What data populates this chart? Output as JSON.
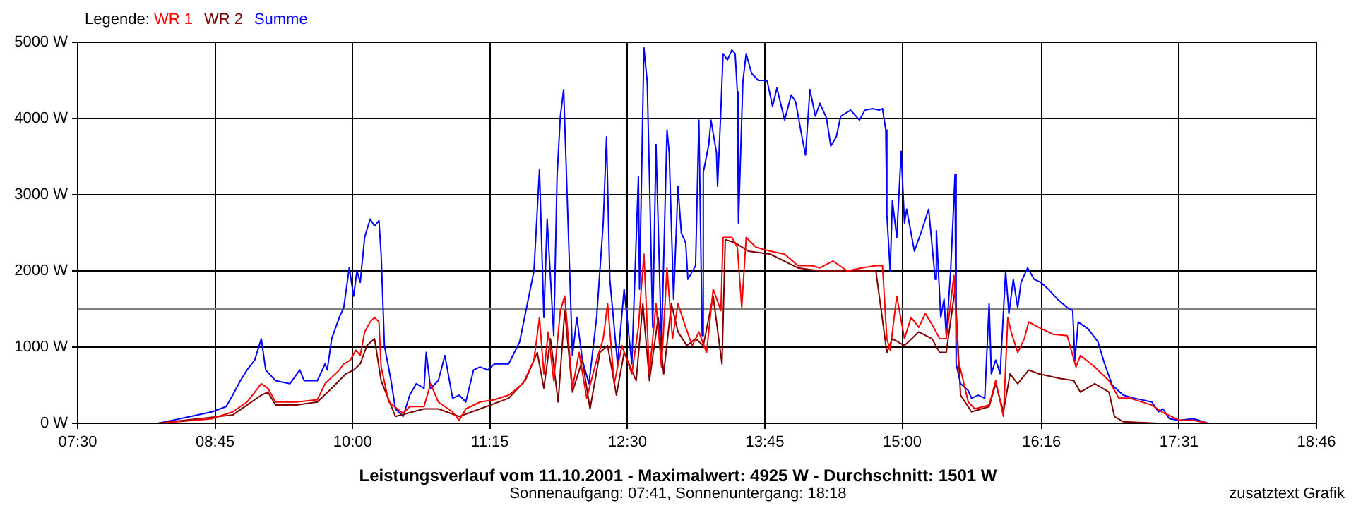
{
  "chart_data": {
    "type": "line",
    "title": "Leistungsverlauf vom 11.10.2001 - Maximalwert: 4925 W - Durchschnitt: 1501 W",
    "subtitle": "Sonnenaufgang: 07:41, Sonnenuntergang: 18:18",
    "legend_title": "Legende:",
    "legend": "top left",
    "grid": true,
    "marker": "none",
    "line_style": "solid",
    "annotations": [
      "zusatztext Grafik"
    ],
    "xlim": [
      7.5,
      18.767
    ],
    "xticks": [
      {
        "value": 7.5,
        "label": "07:30"
      },
      {
        "value": 8.75,
        "label": "08:45"
      },
      {
        "value": 10,
        "label": "10:00"
      },
      {
        "value": 11.25,
        "label": "11:15"
      },
      {
        "value": 12.5,
        "label": "12:30"
      },
      {
        "value": 13.75,
        "label": "13:45"
      },
      {
        "value": 15,
        "label": "15:00"
      },
      {
        "value": 16.267,
        "label": "16:16"
      },
      {
        "value": 17.517,
        "label": "17:31"
      },
      {
        "value": 18.767,
        "label": "18:46"
      }
    ],
    "ylim": [
      0,
      5000
    ],
    "yticks": [
      {
        "value": 0,
        "label": "0 W"
      },
      {
        "value": 1000,
        "label": "1000 W"
      },
      {
        "value": 2000,
        "label": "2000 W"
      },
      {
        "value": 3000,
        "label": "3000 W"
      },
      {
        "value": 4000,
        "label": "4000 W"
      },
      {
        "value": 5000,
        "label": "5000 W"
      }
    ],
    "ref_lines": [
      {
        "axis": "y",
        "value": 1501,
        "color": "#808080"
      }
    ],
    "series": [
      {
        "name": "WR 1",
        "color": "#ff0000",
        "x": [
          8.23,
          8.72,
          8.91,
          9.04,
          9.17,
          9.23,
          9.3,
          9.49,
          9.68,
          9.75,
          9.88,
          9.92,
          9.98,
          10.03,
          10.07,
          10.11,
          10.16,
          10.2,
          10.24,
          10.26,
          10.33,
          10.46,
          10.52,
          10.65,
          10.71,
          10.78,
          10.91,
          10.97,
          11.03,
          11.16,
          11.29,
          11.42,
          11.55,
          11.65,
          11.7,
          11.74,
          11.78,
          11.83,
          11.89,
          11.93,
          12.0,
          12.06,
          12.13,
          12.22,
          12.28,
          12.32,
          12.38,
          12.45,
          12.54,
          12.6,
          12.65,
          12.7,
          12.76,
          12.81,
          12.86,
          12.91,
          12.96,
          13.03,
          13.09,
          13.15,
          13.22,
          13.28,
          13.35,
          13.37,
          13.45,
          13.5,
          13.54,
          13.58,
          13.67,
          13.8,
          13.93,
          14.05,
          14.18,
          14.25,
          14.37,
          14.5,
          14.63,
          14.76,
          14.82,
          14.86,
          14.89,
          14.95,
          15.02,
          15.08,
          15.15,
          15.21,
          15.27,
          15.34,
          15.4,
          15.47,
          15.51,
          15.6,
          15.66,
          15.79,
          15.85,
          15.92,
          15.96,
          15.99,
          16.05,
          16.11,
          16.15,
          16.24,
          16.37,
          16.5,
          16.58,
          16.62,
          16.75,
          16.88,
          16.97,
          17.07,
          17.27,
          17.36,
          17.52,
          17.65,
          17.78
        ],
        "values": [
          0,
          60,
          150,
          280,
          520,
          460,
          280,
          280,
          310,
          520,
          700,
          780,
          830,
          960,
          890,
          1200,
          1330,
          1390,
          1330,
          740,
          280,
          130,
          220,
          220,
          520,
          280,
          150,
          40,
          190,
          280,
          310,
          370,
          520,
          830,
          1390,
          650,
          1200,
          560,
          1480,
          1670,
          460,
          930,
          330,
          830,
          1110,
          1570,
          520,
          1020,
          650,
          1260,
          2220,
          650,
          1570,
          740,
          2040,
          1110,
          1570,
          1260,
          1020,
          1200,
          930,
          1760,
          1480,
          2440,
          2440,
          2310,
          1520,
          2440,
          2310,
          2260,
          2220,
          2070,
          2070,
          2040,
          2130,
          2000,
          2040,
          2070,
          2070,
          1110,
          960,
          1670,
          1110,
          1390,
          1260,
          1440,
          1300,
          1110,
          1110,
          1940,
          830,
          280,
          190,
          240,
          560,
          90,
          1390,
          1200,
          930,
          1110,
          1330,
          1260,
          1170,
          1150,
          740,
          890,
          740,
          560,
          330,
          330,
          240,
          150,
          40,
          40,
          0
        ]
      },
      {
        "name": "WR 2",
        "color": "#800000",
        "x": [
          8.23,
          8.91,
          9.04,
          9.17,
          9.23,
          9.3,
          9.49,
          9.68,
          9.81,
          9.94,
          10.01,
          10.07,
          10.13,
          10.2,
          10.26,
          10.39,
          10.65,
          10.78,
          10.97,
          11.16,
          11.42,
          11.57,
          11.68,
          11.74,
          11.8,
          11.87,
          11.93,
          12.0,
          12.09,
          12.16,
          12.25,
          12.32,
          12.4,
          12.47,
          12.58,
          12.64,
          12.7,
          12.78,
          12.83,
          12.9,
          12.96,
          13.04,
          13.12,
          13.19,
          13.28,
          13.36,
          13.39,
          13.48,
          13.6,
          13.8,
          14.05,
          14.25,
          14.5,
          14.76,
          14.86,
          14.91,
          15.02,
          15.15,
          15.27,
          15.34,
          15.4,
          15.48,
          15.53,
          15.63,
          15.79,
          15.85,
          15.92,
          15.98,
          16.05,
          16.15,
          16.24,
          16.43,
          16.56,
          16.62,
          16.75,
          16.88,
          16.93,
          17.01,
          17.33,
          17.78
        ],
        "values": [
          0,
          110,
          240,
          370,
          410,
          240,
          240,
          280,
          460,
          650,
          700,
          780,
          1020,
          1110,
          560,
          90,
          190,
          190,
          90,
          190,
          330,
          560,
          930,
          460,
          1110,
          280,
          1480,
          410,
          830,
          190,
          930,
          1020,
          370,
          930,
          560,
          1570,
          560,
          1390,
          650,
          1570,
          1200,
          1020,
          1110,
          1020,
          1670,
          780,
          2410,
          2370,
          2260,
          2220,
          2040,
          2000,
          2000,
          2000,
          930,
          1110,
          1020,
          1200,
          1110,
          930,
          930,
          1760,
          370,
          150,
          220,
          520,
          150,
          650,
          520,
          700,
          650,
          590,
          560,
          410,
          520,
          410,
          90,
          20,
          0,
          0
        ]
      },
      {
        "name": "Summe",
        "color": "#0000ff",
        "x": [
          8.23,
          8.46,
          8.72,
          8.85,
          8.91,
          8.98,
          9.04,
          9.11,
          9.17,
          9.21,
          9.3,
          9.43,
          9.52,
          9.56,
          9.68,
          9.75,
          9.77,
          9.81,
          9.88,
          9.92,
          9.97,
          10.01,
          10.04,
          10.07,
          10.11,
          10.16,
          10.2,
          10.24,
          10.26,
          10.29,
          10.35,
          10.39,
          10.46,
          10.52,
          10.58,
          10.65,
          10.67,
          10.71,
          10.78,
          10.84,
          10.91,
          10.97,
          11.03,
          11.1,
          11.16,
          11.23,
          11.29,
          11.42,
          11.52,
          11.65,
          11.7,
          11.74,
          11.77,
          11.83,
          11.86,
          11.89,
          11.92,
          11.96,
          12.0,
          12.04,
          12.09,
          12.15,
          12.22,
          12.28,
          12.31,
          12.34,
          12.41,
          12.47,
          12.54,
          12.6,
          12.61,
          12.65,
          12.68,
          12.7,
          12.73,
          12.76,
          12.81,
          12.86,
          12.88,
          12.92,
          12.96,
          12.99,
          13.03,
          13.05,
          13.12,
          13.15,
          13.18,
          13.19,
          13.24,
          13.26,
          13.31,
          13.32,
          13.35,
          13.37,
          13.41,
          13.45,
          13.48,
          13.5,
          13.51,
          13.55,
          13.58,
          13.63,
          13.69,
          13.77,
          13.82,
          13.86,
          13.93,
          13.99,
          14.03,
          14.09,
          14.12,
          14.16,
          14.21,
          14.25,
          14.31,
          14.35,
          14.4,
          14.44,
          14.53,
          14.61,
          14.66,
          14.73,
          14.79,
          14.82,
          14.85,
          14.86,
          14.89,
          14.91,
          14.95,
          14.99,
          15.02,
          15.04,
          15.11,
          15.17,
          15.24,
          15.3,
          15.31,
          15.35,
          15.38,
          15.4,
          15.44,
          15.48,
          15.49,
          15.53,
          15.6,
          15.63,
          15.69,
          15.75,
          15.79,
          15.81,
          15.85,
          15.89,
          15.94,
          15.97,
          16.01,
          16.05,
          16.08,
          16.14,
          16.2,
          16.26,
          16.33,
          16.41,
          16.5,
          16.55,
          16.57,
          16.6,
          16.69,
          16.78,
          16.84,
          16.91,
          17.01,
          17.11,
          17.27,
          17.33,
          17.37,
          17.43,
          17.52,
          17.65,
          17.78
        ],
        "values": [
          0,
          70,
          150,
          220,
          370,
          560,
          700,
          830,
          1110,
          700,
          560,
          520,
          700,
          560,
          560,
          780,
          700,
          1110,
          1390,
          1520,
          2040,
          1670,
          2000,
          1850,
          2440,
          2680,
          2590,
          2660,
          2220,
          1020,
          560,
          190,
          90,
          370,
          520,
          460,
          930,
          460,
          560,
          890,
          330,
          370,
          280,
          700,
          740,
          700,
          780,
          780,
          1070,
          2000,
          3330,
          1390,
          2680,
          1150,
          3240,
          4030,
          4380,
          2630,
          890,
          1390,
          830,
          520,
          1390,
          2630,
          3760,
          1890,
          780,
          1760,
          780,
          3240,
          1760,
          4930,
          4480,
          3240,
          1260,
          3660,
          1020,
          3850,
          3550,
          1630,
          3110,
          2500,
          2370,
          1890,
          2070,
          3980,
          1150,
          3290,
          3660,
          3980,
          3550,
          3110,
          4110,
          4850,
          4770,
          4900,
          4850,
          4350,
          2630,
          4480,
          4850,
          4590,
          4500,
          4500,
          4160,
          4400,
          3980,
          4310,
          4220,
          3740,
          3520,
          4380,
          4030,
          4200,
          4010,
          3640,
          3760,
          4030,
          4110,
          3980,
          4110,
          4130,
          4110,
          4130,
          3850,
          2740,
          2000,
          2920,
          2440,
          3570,
          2630,
          2810,
          2260,
          2500,
          2810,
          1890,
          2530,
          1390,
          1630,
          1150,
          2000,
          3270,
          780,
          520,
          430,
          330,
          370,
          330,
          1570,
          650,
          830,
          650,
          2000,
          1440,
          1890,
          1520,
          1850,
          2040,
          1890,
          1850,
          1760,
          1630,
          1520,
          1480,
          830,
          1330,
          1240,
          1070,
          780,
          500,
          370,
          330,
          280,
          150,
          190,
          60,
          40,
          60,
          0
        ]
      }
    ]
  }
}
